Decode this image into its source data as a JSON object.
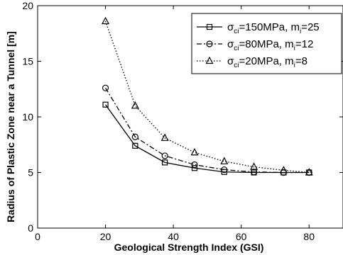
{
  "chart_data": {
    "type": "line",
    "xlabel": "Geological Strength Index (GSI)",
    "ylabel": "Radius of Plastic Zone near a Tunnel [m]",
    "xlim": [
      0,
      90
    ],
    "ylim": [
      0,
      20
    ],
    "xticks": [
      0,
      20,
      40,
      60,
      80
    ],
    "yticks": [
      0,
      5,
      10,
      15,
      20
    ],
    "grid": false,
    "legend_position": "top-right",
    "x": [
      20,
      28.75,
      37.5,
      46.25,
      55,
      63.75,
      72.5,
      80
    ],
    "series": [
      {
        "name": "σci=150MPa, mi=25",
        "legend_parts": [
          "σ",
          "ci",
          "=150MPa,   m",
          "i",
          "=25"
        ],
        "marker": "square",
        "linestyle": "solid",
        "values": [
          11.1,
          7.4,
          5.9,
          5.4,
          5.05,
          5.0,
          5.0,
          5.0
        ]
      },
      {
        "name": "σci=80MPa, mi=12",
        "legend_parts": [
          "σ",
          "ci",
          "=80MPa,     m",
          "i",
          "=12"
        ],
        "marker": "circle",
        "linestyle": "dashdot",
        "values": [
          12.6,
          8.2,
          6.5,
          5.7,
          5.25,
          5.05,
          5.0,
          5.0
        ]
      },
      {
        "name": "σci=20MPa, mi=8",
        "legend_parts": [
          "σ",
          "ci",
          "=20MPa,     m",
          "i",
          "=8"
        ],
        "marker": "triangle",
        "linestyle": "dotted",
        "values": [
          18.6,
          11.0,
          8.1,
          6.8,
          6.0,
          5.5,
          5.2,
          5.0
        ]
      }
    ]
  }
}
